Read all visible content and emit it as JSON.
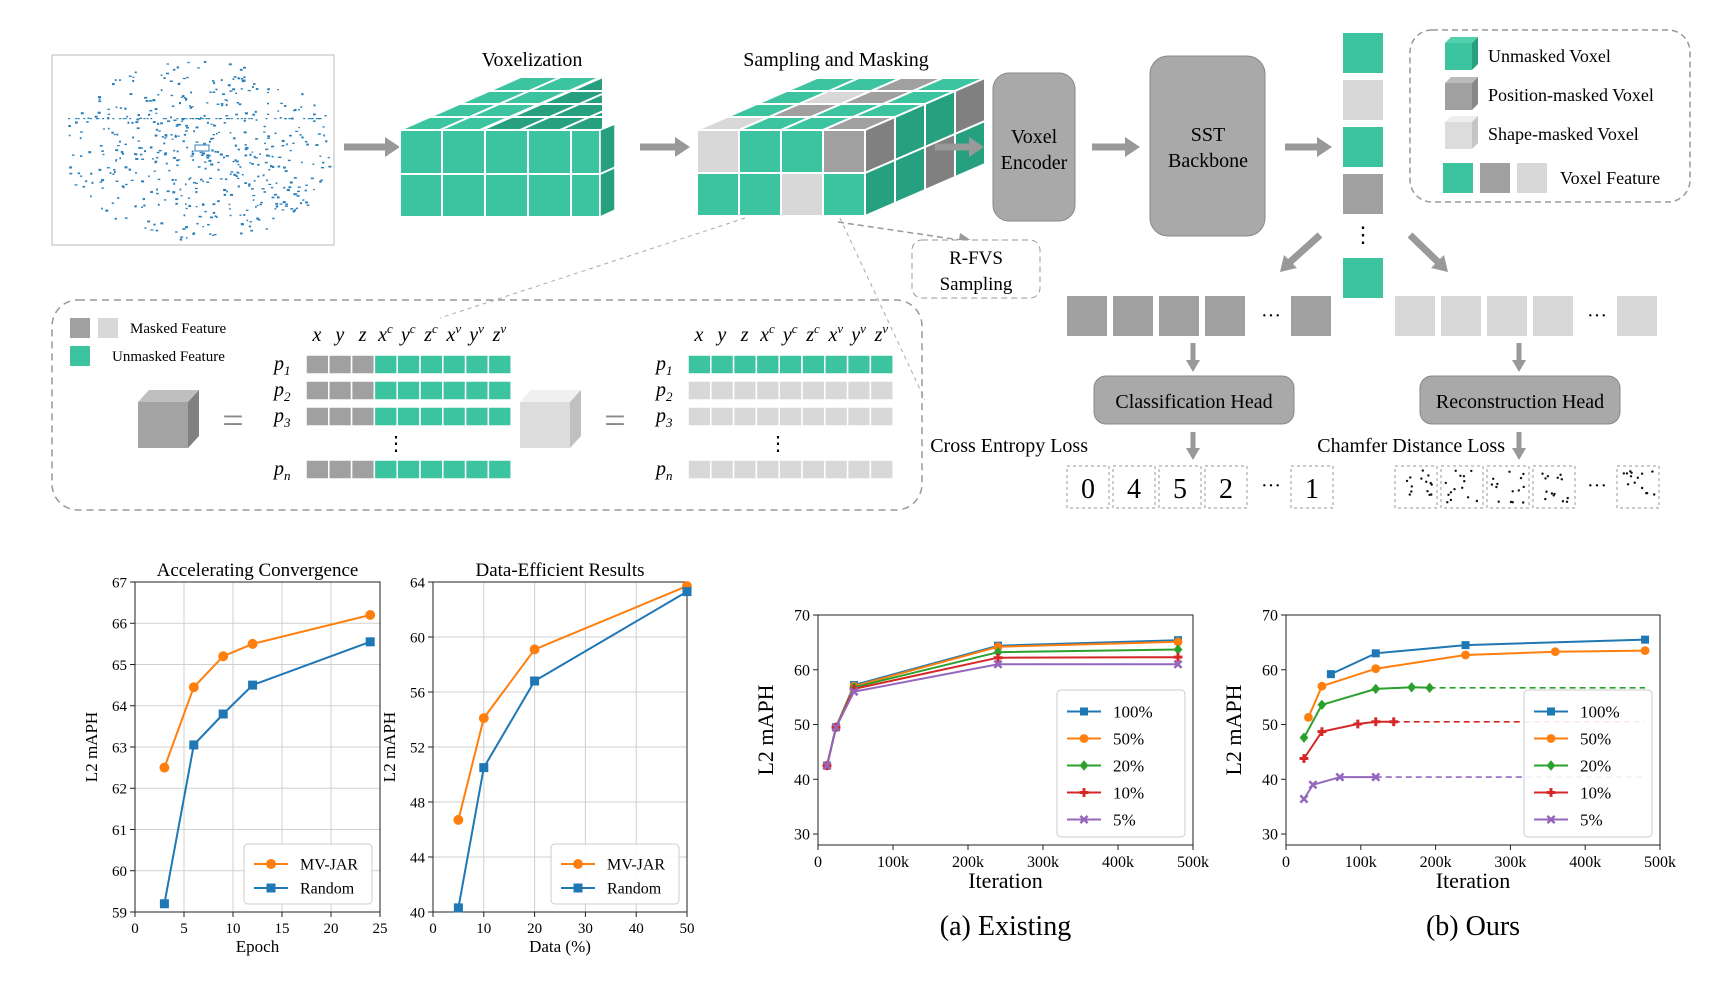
{
  "pipeline": {
    "voxelization_label": "Voxelization",
    "sampling_label": "Sampling and Masking",
    "voxel_encoder_line1": "Voxel",
    "voxel_encoder_line2": "Encoder",
    "sst_line1": "SST",
    "sst_line2": "Backbone",
    "rfvs_line1": "R-FVS",
    "rfvs_line2": "Sampling",
    "classification_head": "Classification Head",
    "reconstruction_head": "Reconstruction Head",
    "ce_loss": "Cross Entropy Loss",
    "chamfer_loss": "Chamfer Distance Loss",
    "class_tokens": [
      "0",
      "4",
      "5",
      "2",
      "1"
    ],
    "ellipsis": "···",
    "vdots": "⋮",
    "colors": {
      "teal": "#3cc4a0",
      "dark_gray": "#a0a0a0",
      "light_gray": "#d8d8d8",
      "box_gray": "#a9a9a9"
    }
  },
  "legend_top": {
    "unmasked_voxel": "Unmasked Voxel",
    "position_masked_voxel": "Position-masked Voxel",
    "shape_masked_voxel": "Shape-masked Voxel",
    "voxel_feature": "Voxel Feature"
  },
  "inset": {
    "masked_feature": "Masked Feature",
    "unmasked_feature": "Unmasked Feature",
    "col_header": [
      "x",
      "y",
      "z",
      "x",
      "y",
      "z",
      "x",
      "y",
      "z"
    ],
    "col_sup": [
      "",
      "",
      "",
      "c",
      "c",
      "c",
      "v",
      "v",
      "v"
    ],
    "rows": [
      "p",
      "p",
      "p",
      "p"
    ],
    "row_sub": [
      "1",
      "2",
      "3",
      "n"
    ],
    "equals": "="
  },
  "charts_small": [
    {
      "type": "line",
      "title": "Accelerating Convergence",
      "xlabel": "Epoch",
      "ylabel": "L2 mAPH",
      "xlim": [
        0,
        25
      ],
      "ylim": [
        59,
        67
      ],
      "xticks": [
        "0",
        "5",
        "10",
        "15",
        "20",
        "25"
      ],
      "yticks": [
        "59",
        "60",
        "61",
        "62",
        "63",
        "64",
        "65",
        "66",
        "67"
      ],
      "legend_position": "lower-right",
      "series": [
        {
          "name": "MV-JAR",
          "color": "#ff7f0e",
          "marker": "circle",
          "x": [
            3,
            6,
            9,
            12,
            24
          ],
          "y": [
            62.5,
            64.45,
            65.2,
            65.5,
            66.2
          ]
        },
        {
          "name": "Random",
          "color": "#1f77b4",
          "marker": "square",
          "x": [
            3,
            6,
            9,
            12,
            24
          ],
          "y": [
            59.2,
            63.05,
            63.8,
            64.5,
            65.55
          ]
        }
      ]
    },
    {
      "type": "line",
      "title": "Data-Efficient Results",
      "xlabel": "Data (%)",
      "ylabel": "L2 mAPH",
      "xlim": [
        0,
        50
      ],
      "ylim": [
        40,
        64
      ],
      "xticks": [
        "0",
        "10",
        "20",
        "30",
        "40",
        "50"
      ],
      "yticks": [
        "40",
        "44",
        "48",
        "52",
        "56",
        "60",
        "64"
      ],
      "legend_position": "lower-right",
      "series": [
        {
          "name": "MV-JAR",
          "color": "#ff7f0e",
          "marker": "circle",
          "x": [
            5,
            10,
            20,
            50
          ],
          "y": [
            46.7,
            54.1,
            59.1,
            63.7
          ]
        },
        {
          "name": "Random",
          "color": "#1f77b4",
          "marker": "square",
          "x": [
            5,
            10,
            20,
            50
          ],
          "y": [
            40.3,
            50.5,
            56.8,
            63.3
          ]
        }
      ]
    }
  ],
  "charts_large": [
    {
      "type": "line",
      "caption": "(a) Existing",
      "xlabel": "Iteration",
      "ylabel": "L2 mAPH",
      "xlim": [
        0,
        500000
      ],
      "ylim": [
        28,
        70
      ],
      "xticks": [
        "0",
        "100k",
        "200k",
        "300k",
        "400k",
        "500k"
      ],
      "yticks": [
        "30",
        "40",
        "50",
        "60",
        "70"
      ],
      "legend_position": "lower-right",
      "series": [
        {
          "name": "100%",
          "color": "#1f77b4",
          "marker": "square",
          "x": [
            12000,
            24000,
            48000,
            240000,
            480000
          ],
          "y": [
            42.5,
            49.5,
            57.2,
            64.4,
            65.4
          ]
        },
        {
          "name": "50%",
          "color": "#ff7f0e",
          "marker": "circle",
          "x": [
            12000,
            24000,
            48000,
            240000,
            480000
          ],
          "y": [
            42.5,
            49.5,
            57.0,
            64.2,
            65.1
          ]
        },
        {
          "name": "20%",
          "color": "#2ca02c",
          "marker": "diamond",
          "x": [
            12000,
            24000,
            48000,
            240000,
            480000
          ],
          "y": [
            42.5,
            49.5,
            56.8,
            63.2,
            63.7
          ]
        },
        {
          "name": "10%",
          "color": "#d62728",
          "marker": "plus",
          "x": [
            12000,
            24000,
            48000,
            240000,
            480000
          ],
          "y": [
            42.5,
            49.5,
            56.5,
            62.2,
            62.3
          ]
        },
        {
          "name": "5%",
          "color": "#9467bd",
          "marker": "x",
          "x": [
            12000,
            24000,
            48000,
            240000,
            480000
          ],
          "y": [
            42.5,
            49.5,
            56.0,
            61.0,
            61.0
          ]
        }
      ]
    },
    {
      "type": "line",
      "caption": "(b) Ours",
      "xlabel": "Iteration",
      "ylabel": "L2 mAPH",
      "xlim": [
        0,
        500000
      ],
      "ylim": [
        28,
        70
      ],
      "xticks": [
        "0",
        "100k",
        "200k",
        "300k",
        "400k",
        "500k"
      ],
      "yticks": [
        "30",
        "40",
        "50",
        "60",
        "70"
      ],
      "legend_position": "lower-right",
      "dashed_extension_to": 480000,
      "series": [
        {
          "name": "100%",
          "color": "#1f77b4",
          "marker": "square",
          "x": [
            60000,
            120000,
            240000,
            480000
          ],
          "y": [
            59.2,
            63.0,
            64.5,
            65.5
          ]
        },
        {
          "name": "50%",
          "color": "#ff7f0e",
          "marker": "circle",
          "x": [
            30000,
            48000,
            120000,
            240000,
            360000,
            480000
          ],
          "y": [
            51.3,
            57.0,
            60.2,
            62.7,
            63.3,
            63.5
          ]
        },
        {
          "name": "20%",
          "color": "#2ca02c",
          "marker": "diamond",
          "x": [
            24000,
            48000,
            120000,
            168000,
            192000
          ],
          "y": [
            47.6,
            53.6,
            56.5,
            56.8,
            56.7
          ]
        },
        {
          "name": "10%",
          "color": "#d62728",
          "marker": "plus",
          "x": [
            24000,
            48000,
            96000,
            120000,
            144000
          ],
          "y": [
            43.8,
            48.7,
            50.1,
            50.5,
            50.5
          ]
        },
        {
          "name": "5%",
          "color": "#9467bd",
          "marker": "x",
          "x": [
            24000,
            36000,
            72000,
            120000
          ],
          "y": [
            36.4,
            39.0,
            40.4,
            40.4
          ]
        }
      ]
    }
  ]
}
